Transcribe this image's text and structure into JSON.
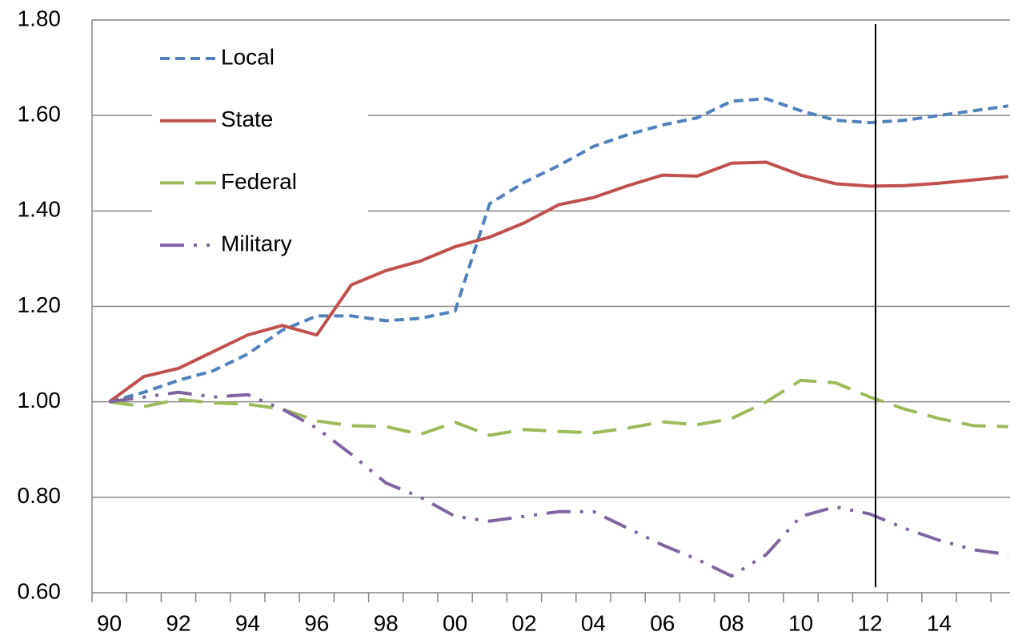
{
  "chart_data": {
    "type": "line",
    "categories": [
      "90",
      null,
      "92",
      null,
      "94",
      null,
      "96",
      null,
      "98",
      null,
      "00",
      null,
      "02",
      null,
      "04",
      null,
      "06",
      null,
      "08",
      null,
      "10",
      null,
      "12",
      null,
      "14",
      null,
      null
    ],
    "series": [
      {
        "name": "Local",
        "color": "#4f81bd",
        "dash": "12 7",
        "values": [
          1.0,
          1.02,
          1.045,
          1.065,
          1.1,
          1.15,
          1.18,
          1.18,
          1.17,
          1.175,
          1.19,
          1.415,
          1.46,
          1.495,
          1.535,
          1.56,
          1.58,
          1.595,
          1.63,
          1.635,
          1.61,
          1.59,
          1.585,
          1.59,
          1.6,
          1.61,
          1.62
        ]
      },
      {
        "name": "State",
        "color": "#c0504d",
        "dash": "none",
        "values": [
          1.0,
          1.053,
          1.07,
          1.105,
          1.14,
          1.16,
          1.14,
          1.245,
          1.275,
          1.295,
          1.325,
          1.345,
          1.375,
          1.413,
          1.428,
          1.453,
          1.475,
          1.473,
          1.5,
          1.502,
          1.475,
          1.457,
          1.452,
          1.453,
          1.458,
          1.465,
          1.472
        ]
      },
      {
        "name": "Federal",
        "color": "#9bbb59",
        "dash": "30 14",
        "values": [
          1.0,
          0.99,
          1.005,
          0.998,
          0.995,
          0.985,
          0.96,
          0.95,
          0.948,
          0.932,
          0.957,
          0.93,
          0.942,
          0.938,
          0.935,
          0.945,
          0.958,
          0.952,
          0.965,
          1.0,
          1.045,
          1.04,
          1.01,
          0.985,
          0.965,
          0.95,
          0.948
        ]
      },
      {
        "name": "Military",
        "color": "#8064a2",
        "dash": "30 12 4 12 4 12",
        "values": [
          1.0,
          1.01,
          1.02,
          1.01,
          1.015,
          0.985,
          0.945,
          0.89,
          0.83,
          0.8,
          0.76,
          0.75,
          0.76,
          0.77,
          0.77,
          0.735,
          0.7,
          0.67,
          0.635,
          0.68,
          0.76,
          0.78,
          0.765,
          0.735,
          0.71,
          0.69,
          0.68
        ]
      }
    ],
    "ylim": [
      0.6,
      1.8
    ],
    "yticks": [
      {
        "value": 0.6,
        "label": "0.60"
      },
      {
        "value": 0.8,
        "label": "0.80"
      },
      {
        "value": 1.0,
        "label": "1.00"
      },
      {
        "value": 1.2,
        "label": "1.20"
      },
      {
        "value": 1.4,
        "label": "1.40"
      },
      {
        "value": 1.6,
        "label": "1.60"
      },
      {
        "value": 1.8,
        "label": "1.80"
      }
    ],
    "grid": true,
    "legend": "upper left"
  }
}
